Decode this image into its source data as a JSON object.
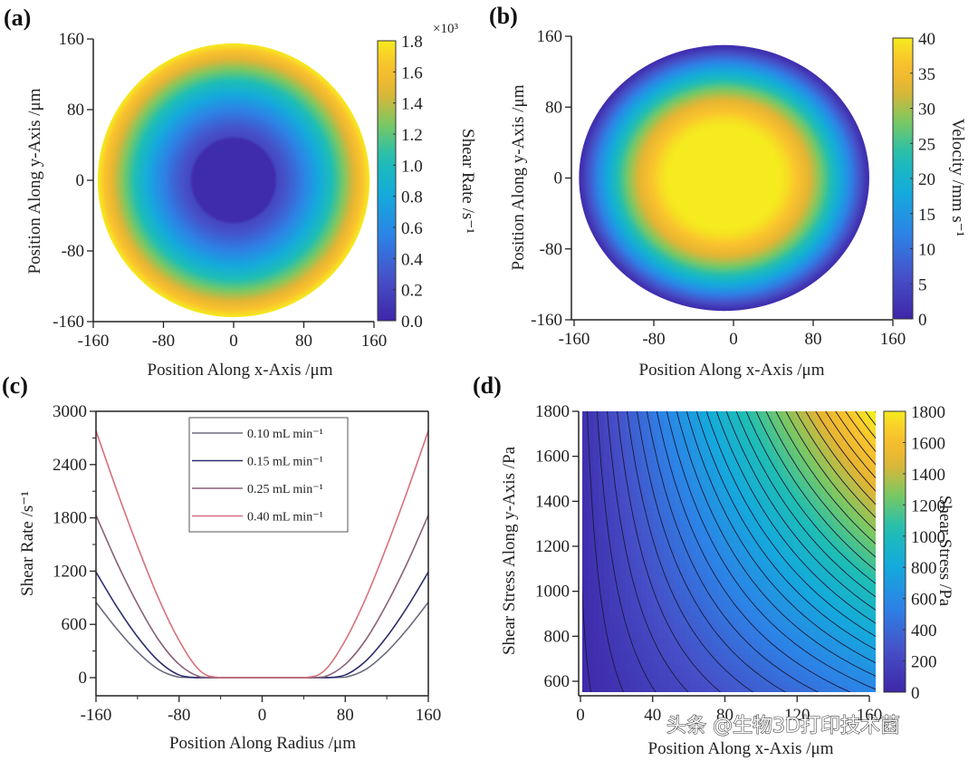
{
  "figure": {
    "watermark": "头条 @生物3D打印技术菌"
  },
  "chart_data": [
    {
      "panel": "(a)",
      "type": "heatmap",
      "title": "",
      "xlabel": "Position Along x-Axis /μm",
      "ylabel": "Position Along y-Axis /μm",
      "xlim": [
        -160,
        160
      ],
      "ylim": [
        -160,
        160
      ],
      "xticks": [
        "-160",
        "-80",
        "0",
        "80",
        "160"
      ],
      "yticks": [
        "160",
        "80",
        "0",
        "-80",
        "-160"
      ],
      "field": "radial shear rate, zero in core (r < ~50 μm), rising to max at wall (r ≈ 155 μm)",
      "domain_radius": 155,
      "core_radius": 50,
      "colorbar": {
        "label": "Shear Rate /s⁻¹",
        "multiplier": "×10³",
        "range": [
          0.0,
          1.8
        ],
        "ticks": [
          "1.8",
          "1.6",
          "1.4",
          "1.2",
          "1.0",
          "0.8",
          "0.6",
          "0.4",
          "0.2",
          "0.0"
        ]
      }
    },
    {
      "panel": "(b)",
      "type": "heatmap",
      "title": "",
      "xlabel": "Position Along x-Axis /μm",
      "ylabel": "Position Along y-Axis /μm",
      "xlim": [
        -160,
        160
      ],
      "ylim": [
        -160,
        160
      ],
      "xticks": [
        "-160",
        "-80",
        "0",
        "80",
        "160"
      ],
      "yticks": [
        "160",
        "80",
        "0",
        "-80",
        "-160"
      ],
      "field": "radial velocity, plug flow ~40 in core decreasing to ~0 at wall (r ≈ 150 μm)",
      "domain_radius": 150,
      "plug_radius": 55,
      "colorbar": {
        "label": "Velocity /mm s⁻¹",
        "range": [
          0,
          40
        ],
        "ticks": [
          "40",
          "35",
          "30",
          "25",
          "20",
          "15",
          "10",
          "5",
          "0"
        ]
      }
    },
    {
      "panel": "(c)",
      "type": "line",
      "title": "",
      "xlabel": "Position Along Radius /μm",
      "ylabel": "Shear Rate /s⁻¹",
      "xlim": [
        -160,
        160
      ],
      "ylim": [
        -200,
        3000
      ],
      "xticks": [
        "-160",
        "-80",
        "0",
        "80",
        "160"
      ],
      "yticks": [
        "3000",
        "2400",
        "1800",
        "1200",
        "600",
        "0"
      ],
      "legend_position": "top-center",
      "x": [
        -160,
        -140,
        -120,
        -100,
        -80,
        -60,
        -40,
        0,
        40,
        60,
        80,
        100,
        120,
        140,
        160
      ],
      "series": [
        {
          "name": "0.10 mL min⁻¹",
          "color": "#6b6b80",
          "values": [
            850,
            550,
            290,
            95,
            5,
            0,
            0,
            0,
            0,
            0,
            5,
            95,
            290,
            550,
            850
          ]
        },
        {
          "name": "0.15 mL min⁻¹",
          "color": "#2e2e6e",
          "values": [
            1190,
            800,
            460,
            190,
            30,
            0,
            0,
            0,
            0,
            0,
            30,
            190,
            460,
            800,
            1190
          ]
        },
        {
          "name": "0.25 mL min⁻¹",
          "color": "#8a6078",
          "values": [
            1830,
            1300,
            830,
            430,
            150,
            10,
            0,
            0,
            0,
            10,
            150,
            430,
            830,
            1300,
            1830
          ]
        },
        {
          "name": "0.40 mL min⁻¹",
          "color": "#d8707a",
          "values": [
            2780,
            2110,
            1480,
            900,
            420,
            80,
            0,
            0,
            0,
            80,
            420,
            900,
            1480,
            2110,
            2780
          ]
        }
      ]
    },
    {
      "panel": "(d)",
      "type": "heatmap",
      "subtype": "contour",
      "title": "",
      "xlabel": "Position Along x-Axis /μm",
      "ylabel": "Shear Stress Along y-Axis /Pa",
      "xlim": [
        0,
        160
      ],
      "ylim": [
        550,
        1800
      ],
      "xticks": [
        "0",
        "40",
        "80",
        "120",
        "160"
      ],
      "yticks": [
        "1800",
        "1600",
        "1400",
        "1200",
        "1000",
        "800",
        "600"
      ],
      "field": "shear stress ≈ proportional to x·y/1800, contour lines every ~60 Pa",
      "contour_levels": 30,
      "colorbar": {
        "label": "Shear Stress /Pa",
        "range": [
          0,
          1800
        ],
        "ticks": [
          "1800",
          "1600",
          "1400",
          "1200",
          "1000",
          "800",
          "600",
          "400",
          "200",
          "0"
        ]
      }
    }
  ]
}
